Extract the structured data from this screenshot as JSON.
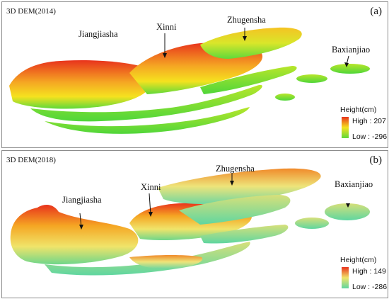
{
  "panels": [
    {
      "title": "3D DEM(2014)",
      "letter": "(a)",
      "labels": {
        "jiangjiasha": "Jiangjiasha",
        "xinni": "Xinni",
        "zhugensha": "Zhugensha",
        "baxianjiao": "Baxianjiao"
      },
      "legend": {
        "title": "Height(cm)",
        "high": "High : 207",
        "low": "Low : -296",
        "high_value": 207,
        "low_value": -296
      },
      "colors": {
        "high": "#e8331c",
        "mid": "#f5e21f",
        "low": "#5fd93a"
      }
    },
    {
      "title": "3D DEM(2018)",
      "letter": "(b)",
      "labels": {
        "jiangjiasha": "Jiangjiasha",
        "xinni": "Xinni",
        "zhugensha": "Zhugensha",
        "baxianjiao": "Baxianjiao"
      },
      "legend": {
        "title": "Height(cm)",
        "high": "High : 149",
        "low": "Low : -286",
        "high_value": 149,
        "low_value": -286
      },
      "colors": {
        "high": "#e8331c",
        "mid": "#f0e46a",
        "low": "#5fd6a0"
      }
    }
  ]
}
